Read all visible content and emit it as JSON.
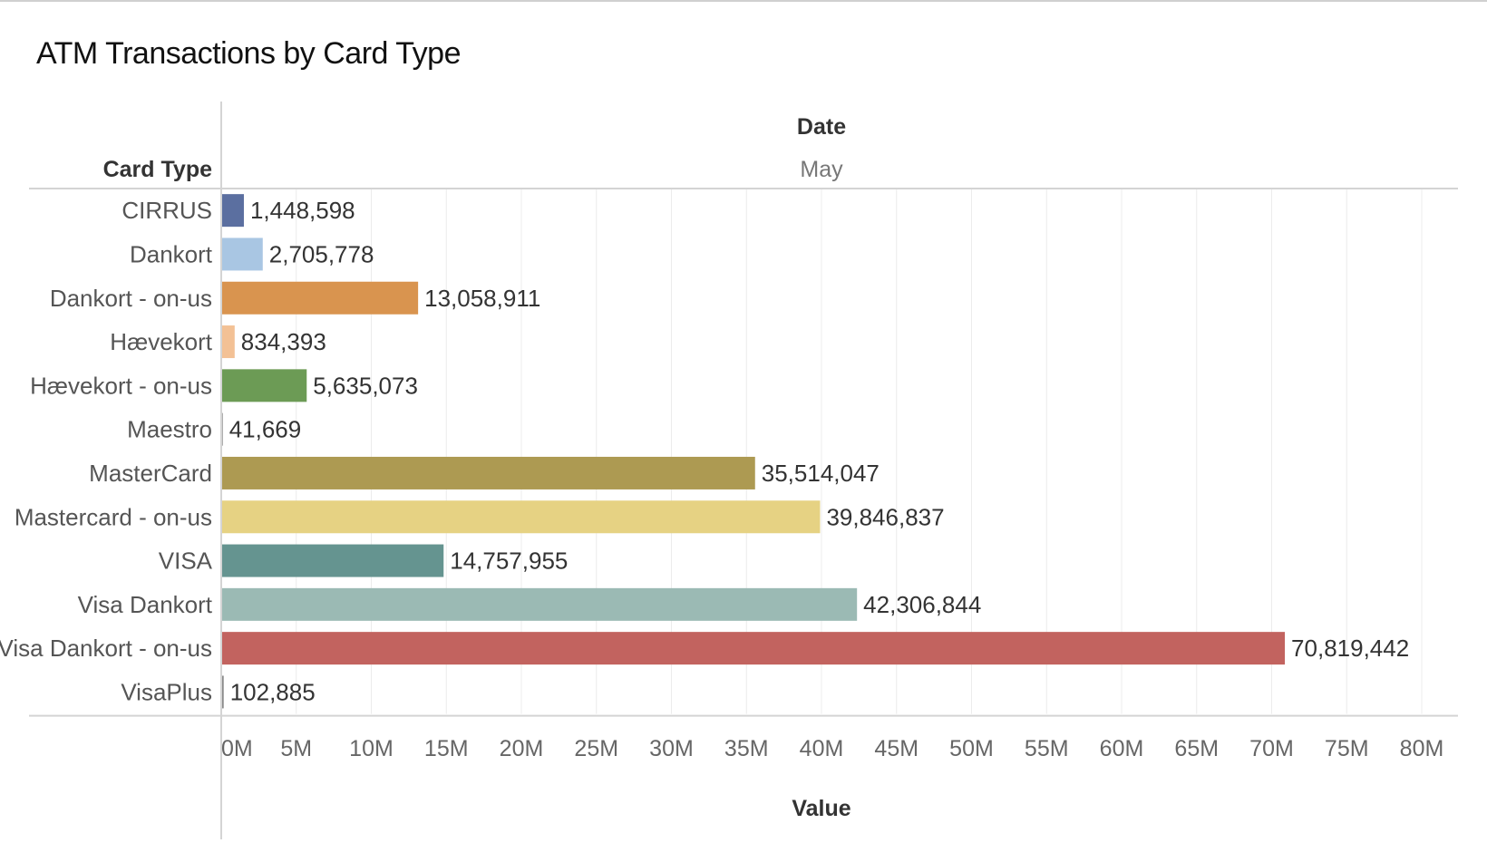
{
  "chart_data": {
    "type": "bar",
    "orientation": "horizontal",
    "title": "ATM Transactions by Card Type",
    "column_header_title": "Date",
    "column_header_value": "May",
    "row_header": "Card Type",
    "xlabel": "Value",
    "xlim": [
      0,
      80000000
    ],
    "x_ticks": [
      0,
      5000000,
      10000000,
      15000000,
      20000000,
      25000000,
      30000000,
      35000000,
      40000000,
      45000000,
      50000000,
      55000000,
      60000000,
      65000000,
      70000000,
      75000000,
      80000000
    ],
    "x_tick_labels": [
      "0M",
      "5M",
      "10M",
      "15M",
      "20M",
      "25M",
      "30M",
      "35M",
      "40M",
      "45M",
      "50M",
      "55M",
      "60M",
      "65M",
      "70M",
      "75M",
      "80M"
    ],
    "grid": true,
    "categories": [
      "CIRRUS",
      "Dankort",
      "Dankort - on-us",
      "Hævekort",
      "Hævekort - on-us",
      "Maestro",
      "MasterCard",
      "Mastercard - on-us",
      "VISA",
      "Visa Dankort",
      "Visa Dankort - on-us",
      "VisaPlus"
    ],
    "values": [
      1448598,
      2705778,
      13058911,
      834393,
      5635073,
      41669,
      35514047,
      39846837,
      14757955,
      42306844,
      70819442,
      102885
    ],
    "value_labels": [
      "1,448,598",
      "2,705,778",
      "13,058,911",
      "834,393",
      "5,635,073",
      "41,669",
      "35,514,047",
      "39,846,837",
      "14,757,955",
      "42,306,844",
      "70,819,442",
      "102,885"
    ],
    "colors": [
      "#5b6fa0",
      "#a9c6e3",
      "#d9944f",
      "#f3c195",
      "#6c9b55",
      "#8a8a8a",
      "#ad9a52",
      "#e6d283",
      "#659490",
      "#9bbab4",
      "#c2635f",
      "#8a8a8a"
    ]
  }
}
